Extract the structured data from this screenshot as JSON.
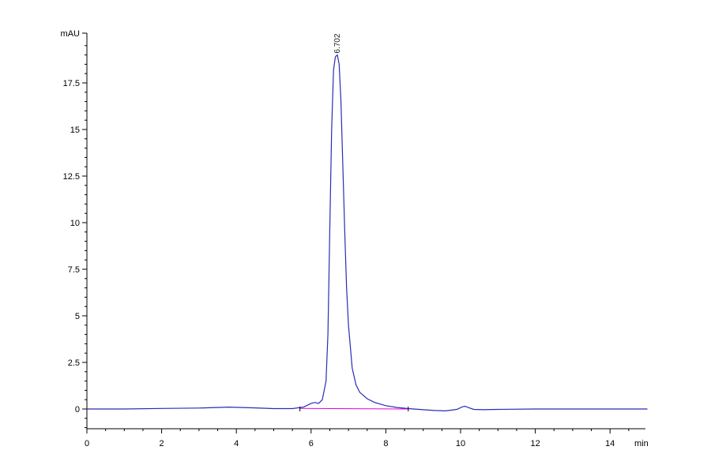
{
  "chart_data": {
    "type": "line",
    "y_unit": "mAU",
    "x_unit": "min",
    "xlim": [
      0,
      15
    ],
    "ylim": [
      -1.2,
      20
    ],
    "x_ticks": [
      0,
      2,
      4,
      6,
      8,
      10,
      12,
      14
    ],
    "x_tick_labels": [
      "0",
      "2",
      "4",
      "6",
      "8",
      "10",
      "12",
      "14"
    ],
    "y_ticks": [
      0,
      2.5,
      5,
      7.5,
      10,
      12.5,
      15,
      17.5
    ],
    "y_tick_labels": [
      "0",
      "2.5",
      "5",
      "7.5",
      "10",
      "12.5",
      "15",
      "17.5"
    ],
    "grid": false,
    "series": [
      {
        "color": "#2b2bb8",
        "x": [
          0,
          1,
          2,
          3,
          3.8,
          4.5,
          5,
          5.5,
          5.8,
          6.0,
          6.1,
          6.2,
          6.3,
          6.4,
          6.45,
          6.5,
          6.55,
          6.6,
          6.65,
          6.702,
          6.75,
          6.8,
          6.85,
          6.9,
          6.95,
          7.0,
          7.1,
          7.2,
          7.3,
          7.5,
          7.7,
          8.0,
          8.3,
          8.6,
          9.0,
          9.3,
          9.6,
          9.9,
          10.05,
          10.12,
          10.2,
          10.35,
          10.6,
          11,
          12,
          13,
          14,
          15
        ],
        "y": [
          0,
          0,
          0.03,
          0.05,
          0.1,
          0.06,
          0.02,
          0.02,
          0.1,
          0.3,
          0.35,
          0.3,
          0.5,
          1.5,
          4.0,
          9.5,
          15.0,
          18.2,
          18.9,
          19.0,
          18.5,
          16.5,
          13.0,
          9.5,
          6.5,
          4.5,
          2.2,
          1.3,
          0.9,
          0.55,
          0.35,
          0.18,
          0.08,
          0.02,
          -0.04,
          -0.08,
          -0.1,
          -0.02,
          0.12,
          0.15,
          0.08,
          -0.02,
          -0.04,
          -0.02,
          0,
          0,
          0,
          0
        ]
      },
      {
        "color": "#e000e0",
        "x": [
          5.7,
          8.6
        ],
        "y": [
          0.03,
          0.0
        ]
      }
    ],
    "annotations": [
      {
        "text": "6.702",
        "x": 6.702,
        "y": 19.0
      }
    ]
  }
}
